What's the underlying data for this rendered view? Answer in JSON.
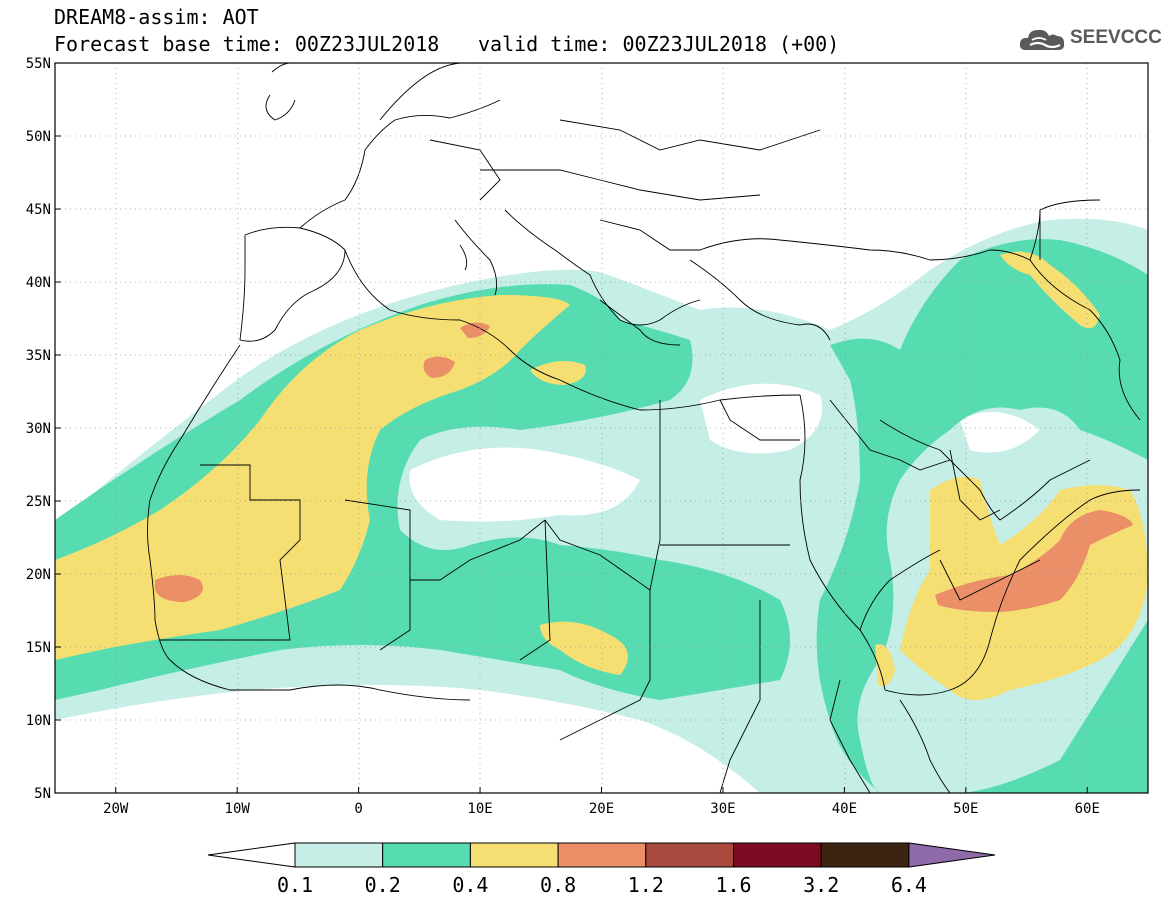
{
  "header": {
    "title_line1": "DREAM8-assim: AOT",
    "base_time": "Forecast base time: 00Z23JUL2018",
    "valid_time": "valid time: 00Z23JUL2018 (+00)"
  },
  "logo": {
    "text": "SEEVCCC",
    "icon": "cloud-icon"
  },
  "map": {
    "lon_labels": [
      "20W",
      "10W",
      "0",
      "10E",
      "20E",
      "30E",
      "40E",
      "50E",
      "60E"
    ],
    "lat_labels": [
      "55N",
      "50N",
      "45N",
      "40N",
      "35N",
      "30N",
      "25N",
      "20N",
      "15N",
      "10N",
      "5N"
    ],
    "extent": {
      "lon": [
        -25,
        65
      ],
      "lat": [
        5,
        55
      ]
    }
  },
  "colorbar": {
    "labels": [
      "0.1",
      "0.2",
      "0.4",
      "0.8",
      "1.2",
      "1.6",
      "3.2",
      "6.4"
    ],
    "colors": [
      "#ffffff",
      "#c4eee6",
      "#56dcb0",
      "#f5df73",
      "#ea8f67",
      "#a84a3e",
      "#7d0b22",
      "#3d2411",
      "#8f6aa8"
    ]
  }
}
